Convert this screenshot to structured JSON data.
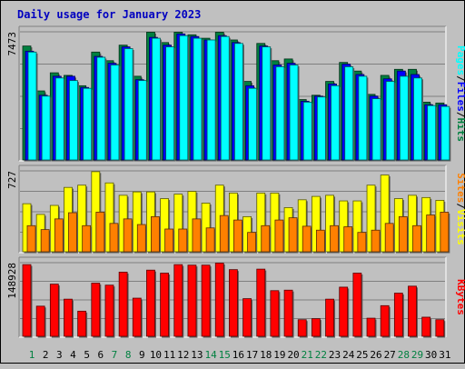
{
  "chart_data": [
    {
      "type": "bar",
      "title": "Daily usage for January 2023",
      "categories": [
        "1",
        "2",
        "3",
        "4",
        "5",
        "6",
        "7",
        "8",
        "9",
        "10",
        "11",
        "12",
        "13",
        "14",
        "15",
        "16",
        "17",
        "18",
        "19",
        "20",
        "21",
        "22",
        "23",
        "24",
        "25",
        "26",
        "27",
        "28",
        "29",
        "30",
        "31"
      ],
      "weekend_days": [
        "1",
        "7",
        "8",
        "14",
        "15",
        "21",
        "22",
        "28",
        "29"
      ],
      "ylim": [
        0,
        7473
      ],
      "y_tick_label": "7473",
      "right_axis_labels": [
        "Pages",
        "/",
        "Files",
        "/",
        "Hits"
      ],
      "series": [
        {
          "name": "Hits",
          "color": "#008040",
          "values": [
            6650,
            4050,
            5100,
            4950,
            4350,
            6300,
            5800,
            6700,
            4900,
            7450,
            6850,
            7450,
            7300,
            7100,
            7450,
            7000,
            4600,
            6800,
            5800,
            5900,
            3550,
            3800,
            4600,
            5700,
            5200,
            3850,
            4950,
            5300,
            5300,
            3400,
            3350
          ]
        },
        {
          "name": "Files",
          "color": "#0000ff",
          "values": [
            6350,
            3800,
            4900,
            4900,
            4250,
            6050,
            5650,
            6600,
            4700,
            7150,
            6700,
            7350,
            7200,
            7000,
            7250,
            6850,
            4350,
            6650,
            5550,
            5650,
            3450,
            3750,
            4450,
            5600,
            5000,
            3750,
            4750,
            5200,
            5000,
            3250,
            3250
          ]
        },
        {
          "name": "Pages",
          "color": "#00ffff",
          "values": [
            6300,
            3750,
            4800,
            4650,
            4200,
            6000,
            5550,
            6500,
            4650,
            7100,
            6600,
            7250,
            7100,
            7000,
            7200,
            6800,
            4200,
            6600,
            5450,
            5550,
            3400,
            3700,
            4350,
            5450,
            4900,
            3600,
            4600,
            4900,
            4800,
            3200,
            3150
          ]
        }
      ]
    },
    {
      "type": "bar",
      "categories": [
        "1",
        "2",
        "3",
        "4",
        "5",
        "6",
        "7",
        "8",
        "9",
        "10",
        "11",
        "12",
        "13",
        "14",
        "15",
        "16",
        "17",
        "18",
        "19",
        "20",
        "21",
        "22",
        "23",
        "24",
        "25",
        "26",
        "27",
        "28",
        "29",
        "30",
        "31"
      ],
      "ylim": [
        0,
        727
      ],
      "y_tick_label": "727",
      "right_axis_labels": [
        "Sites",
        "/",
        "Visits"
      ],
      "series": [
        {
          "name": "Visits",
          "color": "#ffff00",
          "values": [
            435,
            340,
            420,
            580,
            600,
            720,
            620,
            510,
            540,
            540,
            480,
            520,
            545,
            440,
            600,
            530,
            320,
            530,
            530,
            400,
            470,
            500,
            510,
            460,
            460,
            600,
            690,
            480,
            510,
            490,
            465
          ]
        },
        {
          "name": "Sites",
          "color": "#ff8000",
          "values": [
            240,
            205,
            300,
            355,
            240,
            360,
            260,
            300,
            250,
            320,
            210,
            210,
            300,
            220,
            330,
            290,
            180,
            240,
            290,
            310,
            235,
            200,
            240,
            230,
            180,
            200,
            260,
            320,
            240,
            335,
            360
          ]
        }
      ]
    },
    {
      "type": "bar",
      "categories": [
        "1",
        "2",
        "3",
        "4",
        "5",
        "6",
        "7",
        "8",
        "9",
        "10",
        "11",
        "12",
        "13",
        "14",
        "15",
        "16",
        "17",
        "18",
        "19",
        "20",
        "21",
        "22",
        "23",
        "24",
        "25",
        "26",
        "27",
        "28",
        "29",
        "30",
        "31"
      ],
      "ylim": [
        0,
        148928
      ],
      "y_tick_label": "148928",
      "right_axis_labels": [
        "KBytes"
      ],
      "series": [
        {
          "name": "KBytes",
          "color": "#ff0000",
          "values": [
            145000,
            62000,
            106000,
            76000,
            52000,
            108000,
            104000,
            130000,
            78000,
            134000,
            128000,
            145000,
            144000,
            144000,
            148000,
            135000,
            77000,
            136000,
            93000,
            94000,
            35000,
            37000,
            76000,
            100000,
            128000,
            38000,
            63000,
            88000,
            102000,
            40000,
            35000
          ]
        }
      ]
    }
  ]
}
